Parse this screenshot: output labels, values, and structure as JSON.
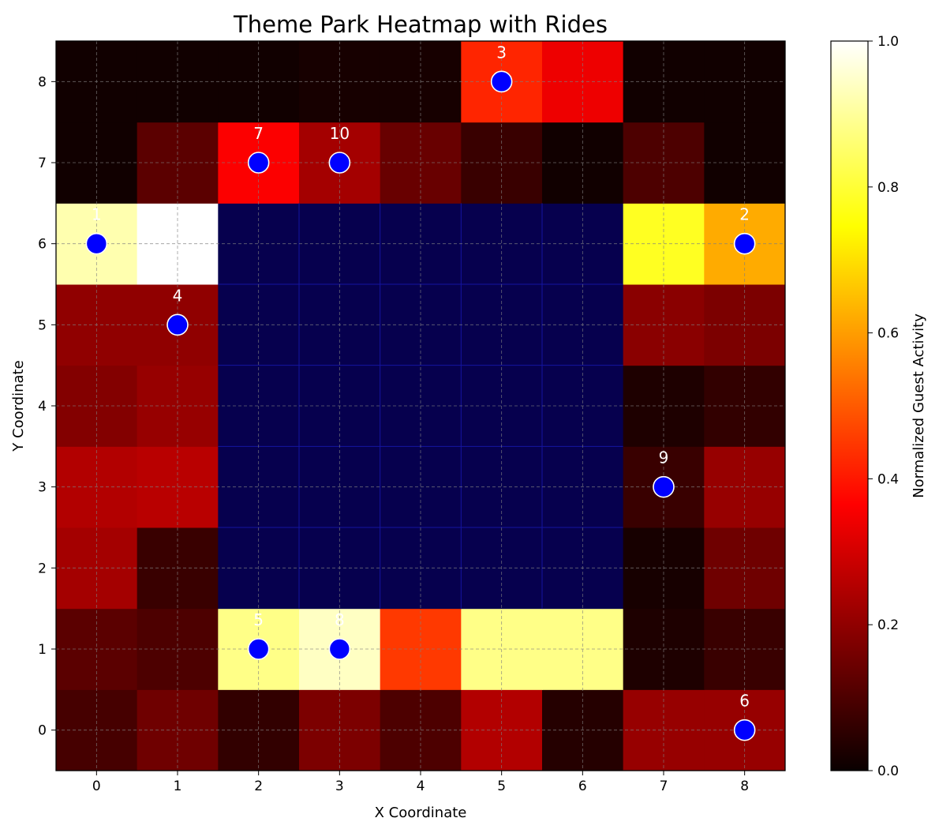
{
  "chart_data": {
    "type": "heatmap",
    "title": "Theme Park Heatmap with Rides",
    "xlabel": "X Coordinate",
    "ylabel": "Y Coordinate",
    "x_ticks": [
      "0",
      "1",
      "2",
      "3",
      "4",
      "5",
      "6",
      "7",
      "8"
    ],
    "y_ticks": [
      "0",
      "1",
      "2",
      "3",
      "4",
      "5",
      "6",
      "7",
      "8"
    ],
    "grid": true,
    "colormap": "hot",
    "colorbar": {
      "label": "Normalized Guest Activity",
      "range": [
        0,
        1
      ],
      "ticks": [
        "0.0",
        "0.2",
        "0.4",
        "0.6",
        "0.8",
        "1.0"
      ]
    },
    "masked_region": {
      "x": [
        2,
        6
      ],
      "y": [
        2,
        6
      ],
      "color": "#06004e"
    },
    "values": [
      [
        0.09,
        0.15,
        0.06,
        0.17,
        0.1,
        0.25,
        0.04,
        0.21,
        0.21
      ],
      [
        0.12,
        0.1,
        0.88,
        0.94,
        0.45,
        0.88,
        0.88,
        0.03,
        0.07
      ],
      [
        0.23,
        0.07,
        null,
        null,
        null,
        null,
        null,
        0.02,
        0.15
      ],
      [
        0.25,
        0.26,
        null,
        null,
        null,
        null,
        null,
        0.07,
        0.21
      ],
      [
        0.18,
        0.21,
        null,
        null,
        null,
        null,
        null,
        0.03,
        0.06
      ],
      [
        0.2,
        0.2,
        null,
        null,
        null,
        null,
        null,
        0.19,
        0.17
      ],
      [
        0.92,
        1.0,
        null,
        null,
        null,
        null,
        null,
        0.78,
        0.62
      ],
      [
        0.01,
        0.12,
        0.36,
        0.23,
        0.14,
        0.07,
        0.01,
        0.1,
        0.01
      ],
      [
        0.01,
        0.01,
        0.01,
        0.02,
        0.02,
        0.42,
        0.34,
        0.01,
        0.01
      ]
    ],
    "rides": [
      {
        "id": "1",
        "x": 0,
        "y": 6
      },
      {
        "id": "2",
        "x": 8,
        "y": 6
      },
      {
        "id": "3",
        "x": 5,
        "y": 8
      },
      {
        "id": "4",
        "x": 1,
        "y": 5
      },
      {
        "id": "5",
        "x": 2,
        "y": 1
      },
      {
        "id": "6",
        "x": 8,
        "y": 0
      },
      {
        "id": "7",
        "x": 2,
        "y": 7
      },
      {
        "id": "8",
        "x": 3,
        "y": 1
      },
      {
        "id": "9",
        "x": 7,
        "y": 3
      },
      {
        "id": "10",
        "x": 3,
        "y": 7
      }
    ],
    "ride_marker_color": "#0000ff"
  }
}
